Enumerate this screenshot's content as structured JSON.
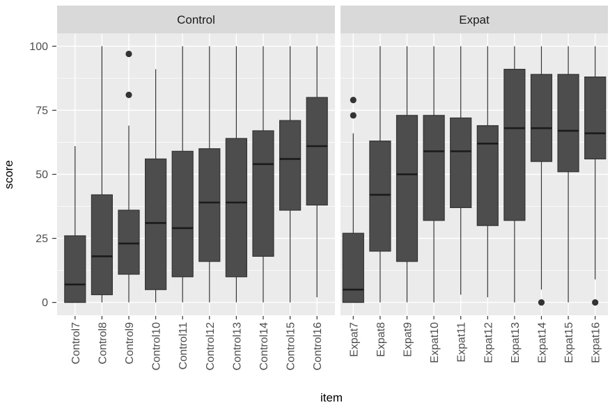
{
  "chart_data": {
    "type": "boxplot",
    "xlabel": "item",
    "ylabel": "score",
    "ylim": [
      -5,
      105
    ],
    "y_ticks": [
      0,
      25,
      50,
      75,
      100
    ],
    "grid": true,
    "facets": [
      {
        "label": "Control",
        "boxes": [
          {
            "category": "Control7",
            "lower": 0,
            "q1": 0,
            "median": 7,
            "q3": 26,
            "upper": 61,
            "outliers": []
          },
          {
            "category": "Control8",
            "lower": 0,
            "q1": 3,
            "median": 18,
            "q3": 42,
            "upper": 100,
            "outliers": []
          },
          {
            "category": "Control9",
            "lower": 0,
            "q1": 11,
            "median": 23,
            "q3": 36,
            "upper": 69,
            "outliers": [
              81,
              97
            ]
          },
          {
            "category": "Control10",
            "lower": 0,
            "q1": 5,
            "median": 31,
            "q3": 56,
            "upper": 91,
            "outliers": []
          },
          {
            "category": "Control11",
            "lower": 0,
            "q1": 10,
            "median": 29,
            "q3": 59,
            "upper": 100,
            "outliers": []
          },
          {
            "category": "Control12",
            "lower": 0,
            "q1": 16,
            "median": 39,
            "q3": 60,
            "upper": 100,
            "outliers": []
          },
          {
            "category": "Control13",
            "lower": 0,
            "q1": 10,
            "median": 39,
            "q3": 64,
            "upper": 100,
            "outliers": []
          },
          {
            "category": "Control14",
            "lower": 0,
            "q1": 18,
            "median": 54,
            "q3": 67,
            "upper": 100,
            "outliers": []
          },
          {
            "category": "Control15",
            "lower": 0,
            "q1": 36,
            "median": 56,
            "q3": 71,
            "upper": 100,
            "outliers": []
          },
          {
            "category": "Control16",
            "lower": 2,
            "q1": 38,
            "median": 61,
            "q3": 80,
            "upper": 100,
            "outliers": []
          }
        ]
      },
      {
        "label": "Expat",
        "boxes": [
          {
            "category": "Expat7",
            "lower": 0,
            "q1": 0,
            "median": 5,
            "q3": 27,
            "upper": 66,
            "outliers": [
              73,
              79
            ]
          },
          {
            "category": "Expat8",
            "lower": 0,
            "q1": 20,
            "median": 42,
            "q3": 63,
            "upper": 100,
            "outliers": []
          },
          {
            "category": "Expat9",
            "lower": 0,
            "q1": 16,
            "median": 50,
            "q3": 73,
            "upper": 100,
            "outliers": []
          },
          {
            "category": "Expat10",
            "lower": 0,
            "q1": 32,
            "median": 59,
            "q3": 73,
            "upper": 100,
            "outliers": []
          },
          {
            "category": "Expat11",
            "lower": 3,
            "q1": 37,
            "median": 59,
            "q3": 72,
            "upper": 100,
            "outliers": []
          },
          {
            "category": "Expat12",
            "lower": 2,
            "q1": 30,
            "median": 62,
            "q3": 69,
            "upper": 100,
            "outliers": []
          },
          {
            "category": "Expat13",
            "lower": 0,
            "q1": 32,
            "median": 68,
            "q3": 91,
            "upper": 100,
            "outliers": []
          },
          {
            "category": "Expat14",
            "lower": 5,
            "q1": 55,
            "median": 68,
            "q3": 89,
            "upper": 100,
            "outliers": [
              0
            ]
          },
          {
            "category": "Expat15",
            "lower": 0,
            "q1": 51,
            "median": 67,
            "q3": 89,
            "upper": 100,
            "outliers": []
          },
          {
            "category": "Expat16",
            "lower": 9,
            "q1": 56,
            "median": 66,
            "q3": 88,
            "upper": 100,
            "outliers": [
              0
            ]
          }
        ]
      }
    ],
    "colors": {
      "panel_background": "#ebebeb",
      "strip_background": "#d9d9d9",
      "box_fill": "#4d4d4d",
      "line": "#333333"
    }
  }
}
